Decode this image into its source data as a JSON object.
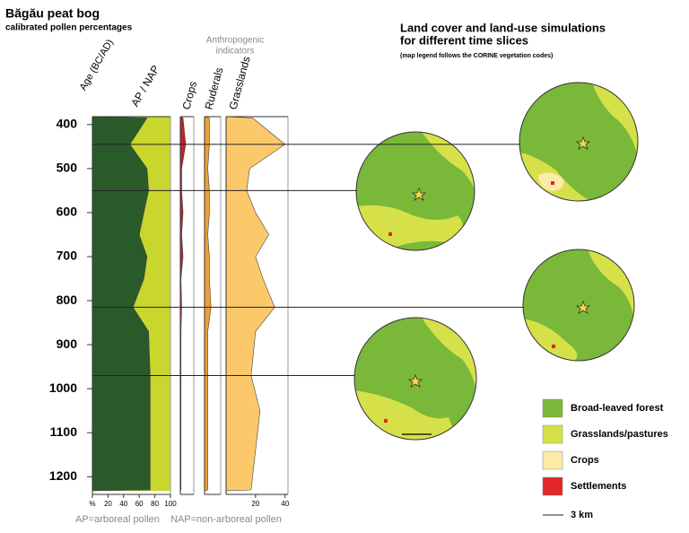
{
  "header": {
    "title": "Băgău peat bog",
    "subtitle": "calibrated pollen percentages"
  },
  "chart_data": {
    "type": "pollen-diagram",
    "y_label": "Age (BC/AD)",
    "ylim": [
      382,
      1232
    ],
    "y_inverted": true,
    "yticks": [
      400,
      500,
      600,
      700,
      800,
      900,
      1000,
      1100,
      1200
    ],
    "ages": [
      385,
      445,
      500,
      550,
      600,
      650,
      700,
      750,
      815,
      870,
      970,
      1050,
      1230
    ],
    "group_label": [
      "Anthropogenic",
      "indicators"
    ],
    "panels": [
      {
        "label": "AP / NAP",
        "values": [
          70,
          48,
          70,
          72,
          66,
          60,
          70,
          66,
          52,
          72,
          74,
          74,
          74
        ],
        "color": "#2a5a2a",
        "fill_color": "#c8d62e",
        "xlim": [
          0,
          100
        ],
        "xticks": [
          {
            "value": 0,
            "label": "%"
          },
          20,
          40,
          60,
          80,
          100
        ]
      },
      {
        "label": "Crops",
        "values": [
          2,
          4,
          1,
          1,
          2,
          1,
          2,
          0.5,
          1,
          0.5,
          0.5,
          0.5,
          0.5
        ],
        "color": "#b8262c",
        "xlim": [
          0,
          10
        ],
        "xticks": []
      },
      {
        "label": "Ruderals",
        "values": [
          3,
          3,
          2,
          3,
          3,
          2,
          3,
          3,
          4,
          2,
          2,
          2,
          2
        ],
        "color": "#f0a030",
        "xlim": [
          0,
          10
        ],
        "xticks": []
      },
      {
        "label": "Grasslands",
        "values": [
          18,
          40,
          16,
          14,
          20,
          29,
          20,
          25,
          33,
          20,
          17,
          23,
          17
        ],
        "color": "#fcc96a",
        "xlim": [
          0,
          42
        ],
        "xticks": [
          20,
          40
        ]
      }
    ],
    "notes": [
      "AP=arboreal pollen",
      "NAP=non-arboreal pollen"
    ],
    "time_slices": [
      445,
      550,
      815,
      970
    ]
  },
  "maps": {
    "title": [
      "Land cover and land-use simulations",
      "for different time slices"
    ],
    "subtitle": "(map legend follows the CORINE vegetation codes)",
    "legend": [
      {
        "label": "Broad-leaved forest",
        "color": "#7ab83a"
      },
      {
        "label": "Grasslands/pastures",
        "color": "#d6e14a"
      },
      {
        "label": "Crops",
        "color": "#fde9a8"
      },
      {
        "label": "Settlements",
        "color": "#e0262a"
      }
    ],
    "scale": "3 km"
  }
}
